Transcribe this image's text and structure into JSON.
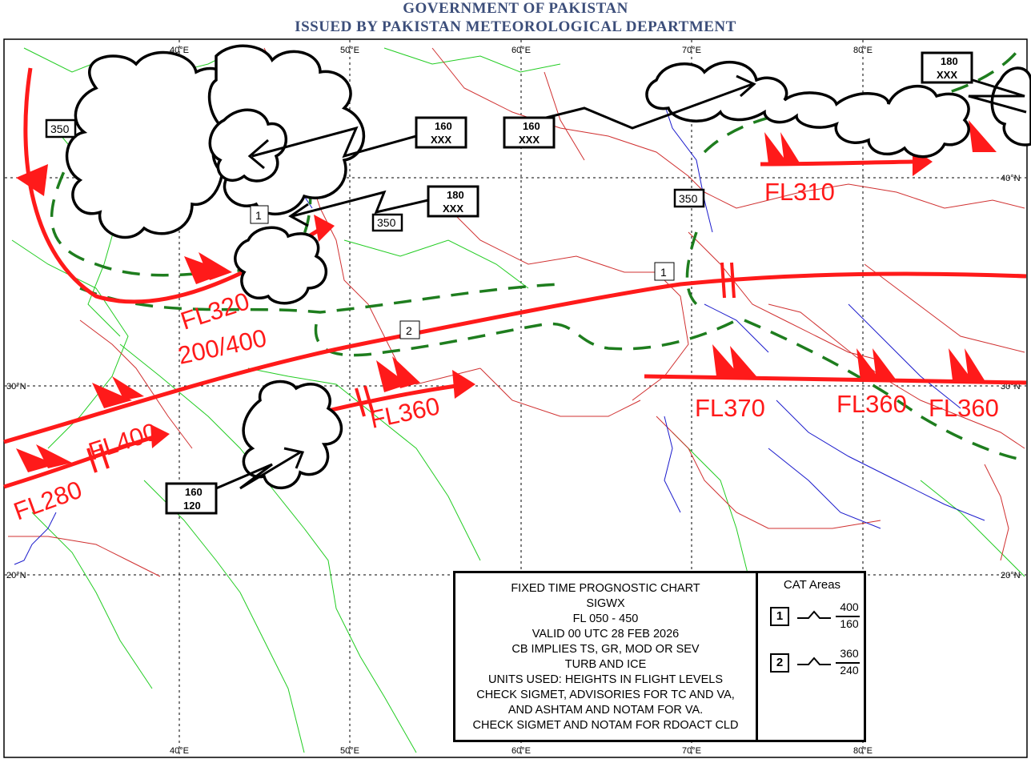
{
  "header": {
    "line1": "GOVERNMENT OF PAKISTAN",
    "line2": "ISSUED BY PAKISTAN METEOROLOGICAL DEPARTMENT"
  },
  "grid": {
    "lon_labels": [
      "40°E",
      "50°E",
      "60°E",
      "70°E",
      "80°E"
    ],
    "lat_labels": [
      "40°N",
      "30°N",
      "20°N"
    ]
  },
  "jet_labels": [
    "FL310",
    "FL320",
    "200/400",
    "FL400",
    "FL280",
    "FL360",
    "FL370",
    "FL360",
    "FL360"
  ],
  "cat_markers": [
    "1",
    "1",
    "2"
  ],
  "tropopause_labels": [
    "350",
    "350",
    "350"
  ],
  "cb_boxes": [
    {
      "top": "160",
      "bottom": "XXX"
    },
    {
      "top": "160",
      "bottom": "XXX"
    },
    {
      "top": "180",
      "bottom": "XXX"
    },
    {
      "top": "180",
      "bottom": "XXX"
    },
    {
      "top": "160",
      "bottom": "120"
    }
  ],
  "legend": {
    "lines": [
      "FIXED TIME PROGNOSTIC CHART",
      "SIGWX",
      "FL 050 - 450",
      "VALID 00 UTC  28 FEB 2026",
      "CB IMPLIES TS, GR, MOD OR SEV",
      "TURB AND ICE",
      "UNITS USED: HEIGHTS IN FLIGHT LEVELS",
      "CHECK SIGMET, ADVISORIES FOR TC AND VA,",
      "AND ASHTAM AND NOTAM FOR VA.",
      "CHECK SIGMET AND NOTAM FOR RDOACT CLD"
    ],
    "cat_title": "CAT Areas",
    "cat_areas": [
      {
        "id": "1",
        "top": "400",
        "bottom": "160"
      },
      {
        "id": "2",
        "top": "360",
        "bottom": "240"
      }
    ]
  },
  "colors": {
    "jet": "#ff1a1a",
    "cat_area": "#1e7d1e",
    "borders": "#d03030",
    "rivers": "#1a1acc",
    "admin": "#22cc22",
    "header": "#3c4e7a"
  }
}
